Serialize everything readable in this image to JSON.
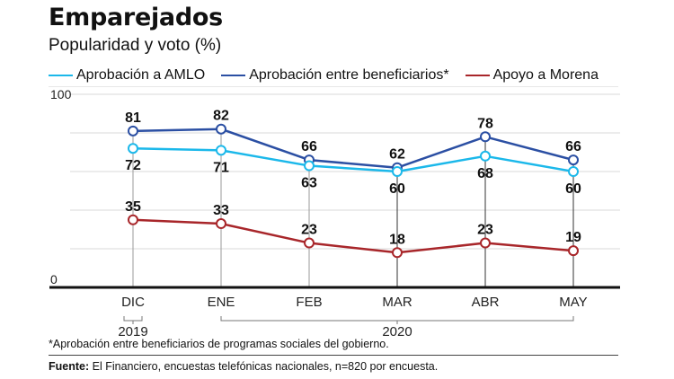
{
  "header": {
    "title": "Emparejados",
    "subtitle": "Popularidad y voto (%)"
  },
  "legend": [
    {
      "label": "Aprobación a AMLO",
      "color": "#1bb8ea"
    },
    {
      "label": "Aprobación entre beneficiarios*",
      "color": "#2b4fa3"
    },
    {
      "label": "Apoyo a Morena",
      "color": "#a8262a"
    }
  ],
  "chart_data": {
    "type": "line",
    "title": "Emparejados",
    "subtitle": "Popularidad y voto (%)",
    "xlabel": "",
    "ylabel": "",
    "categories": [
      "DIC",
      "ENE",
      "FEB",
      "MAR",
      "ABR",
      "MAY"
    ],
    "year_groups": [
      {
        "label": "2019",
        "from": 0,
        "to": 0
      },
      {
        "label": "2020",
        "from": 1,
        "to": 5
      }
    ],
    "ylim": [
      0,
      100
    ],
    "yticks_labeled": [
      0,
      100
    ],
    "gridlines": [
      20,
      40,
      60,
      80,
      100
    ],
    "grid": true,
    "legend_position": "top-left",
    "series": [
      {
        "name": "Aprobación entre beneficiarios*",
        "color": "#2b4fa3",
        "values": [
          81,
          82,
          66,
          62,
          78,
          66
        ],
        "label_position": "above"
      },
      {
        "name": "Aprobación a AMLO",
        "color": "#1bb8ea",
        "values": [
          72,
          71,
          63,
          60,
          68,
          60
        ],
        "label_position": "below"
      },
      {
        "name": "Apoyo a Morena",
        "color": "#a8262a",
        "values": [
          35,
          33,
          23,
          18,
          23,
          19
        ],
        "label_position": "above"
      }
    ]
  },
  "footer": {
    "footnote": "*Aprobación entre beneficiarios de programas sociales del gobierno.",
    "source_label": "Fuente:",
    "source_text": " El Financiero, encuestas telefónicas nacionales, n=820 por encuesta."
  }
}
